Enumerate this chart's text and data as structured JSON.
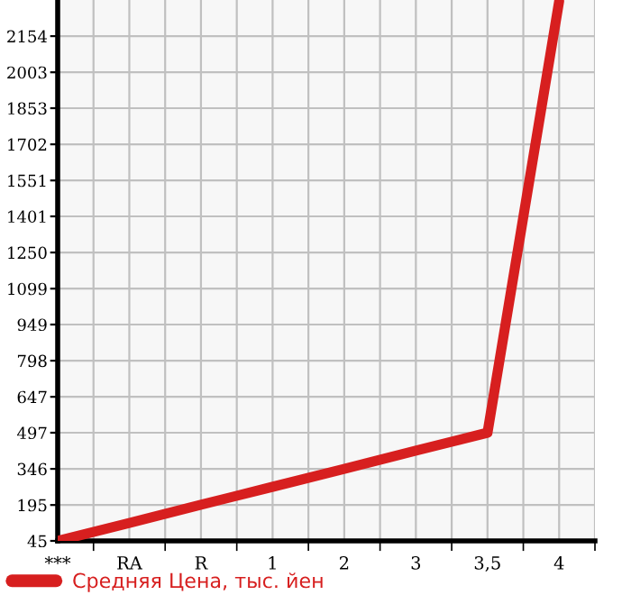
{
  "chart_data": {
    "type": "line",
    "categories": [
      "***",
      "RA",
      "R",
      "1",
      "2",
      "3",
      "3,5",
      "4"
    ],
    "series": [
      {
        "name": "Средняя Цена, тыс. йен",
        "color": "#d71f1f",
        "values": [
          45,
          120,
          196,
          271,
          346,
          422,
          497,
          2300
        ]
      }
    ],
    "ylim": [
      45,
      2305
    ],
    "yticks": [
      45,
      195,
      346,
      497,
      647,
      798,
      949,
      1099,
      1250,
      1401,
      1551,
      1702,
      1853,
      2003,
      2154
    ],
    "grid": true,
    "legend": "bottom",
    "marker": "none",
    "line_style": "solid"
  }
}
